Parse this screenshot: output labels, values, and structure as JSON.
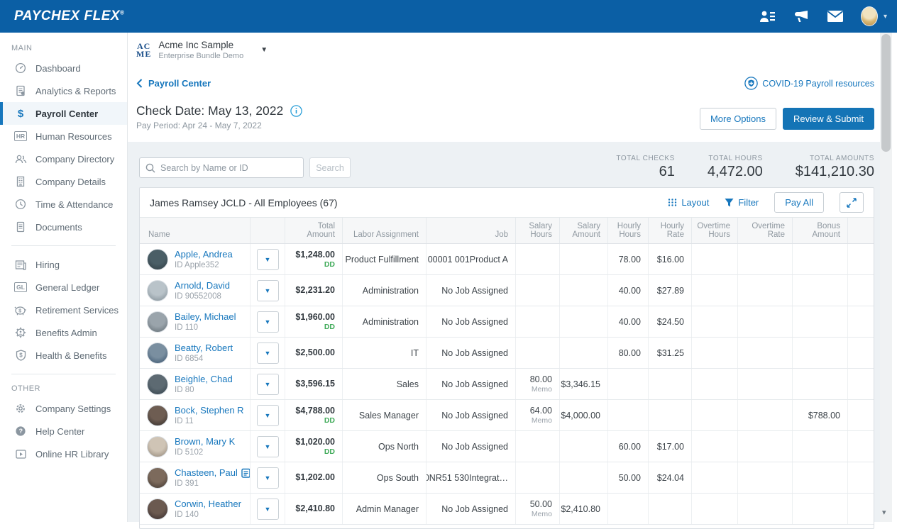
{
  "topbar": {
    "logo_paychex": "PAYCHEX",
    "logo_flex": "FLEX",
    "logo_reg": "®"
  },
  "sidebar": {
    "main_label": "MAIN",
    "other_label": "OTHER",
    "main_items": [
      {
        "label": "Dashboard",
        "icon": "gauge-icon",
        "active": false
      },
      {
        "label": "Analytics & Reports",
        "icon": "report-icon",
        "active": false
      },
      {
        "label": "Payroll Center",
        "icon": "dollar-icon",
        "active": true
      },
      {
        "label": "Human Resources",
        "icon": "hr-badge-icon",
        "active": false
      },
      {
        "label": "Company Directory",
        "icon": "people-icon",
        "active": false
      },
      {
        "label": "Company Details",
        "icon": "building-icon",
        "active": false
      },
      {
        "label": "Time & Attendance",
        "icon": "clock-icon",
        "active": false
      },
      {
        "label": "Documents",
        "icon": "document-icon",
        "active": false
      }
    ],
    "secondary_items": [
      {
        "label": "Hiring",
        "icon": "newspaper-icon"
      },
      {
        "label": "General Ledger",
        "icon": "gl-badge-icon"
      },
      {
        "label": "Retirement Services",
        "icon": "piggy-bank-icon"
      },
      {
        "label": "Benefits Admin",
        "icon": "benefits-gear-icon"
      },
      {
        "label": "Health & Benefits",
        "icon": "shield-icon"
      }
    ],
    "other_items": [
      {
        "label": "Company Settings",
        "icon": "gear-icon"
      },
      {
        "label": "Help Center",
        "icon": "help-icon"
      },
      {
        "label": "Online HR Library",
        "icon": "library-icon"
      }
    ]
  },
  "header": {
    "company_logo_line1": "AC",
    "company_logo_line2": "ME",
    "company_name": "Acme Inc Sample",
    "company_sub": "Enterprise Bundle Demo",
    "breadcrumb": "Payroll Center",
    "covid_link": "COVID-19 Payroll resources",
    "check_date": "Check Date: May 13, 2022",
    "pay_period": "Pay Period:  Apr 24 - May 7, 2022",
    "more_options_label": "More Options",
    "review_submit_label": "Review & Submit"
  },
  "toolbar": {
    "search_placeholder": "Search by Name or ID",
    "search_button_label": "Search",
    "totals": [
      {
        "label": "TOTAL CHECKS",
        "value": "61"
      },
      {
        "label": "TOTAL HOURS",
        "value": "4,472.00"
      },
      {
        "label": "TOTAL AMOUNTS",
        "value": "$141,210.30"
      }
    ]
  },
  "table": {
    "title": "James Ramsey JCLD - All Employees (67)",
    "layout_label": "Layout",
    "filter_label": "Filter",
    "pay_all_label": "Pay All",
    "columns": [
      "Name",
      "",
      "Total Amount",
      "Labor Assignment",
      "Job",
      "Salary Hours",
      "Salary Amount",
      "Hourly Hours",
      "Hourly Rate",
      "Overtime Hours",
      "Overtime Rate",
      "Bonus Amount",
      ""
    ],
    "rows": [
      {
        "name": "Apple, Andrea",
        "id": "ID Apple352",
        "total_amount": "$1,248.00",
        "dd": "DD",
        "labor": "Product Fulfillment",
        "job": "00001 001Product A",
        "salary_hours": "",
        "salary_memo": "",
        "salary_amount": "",
        "hourly_hours": "78.00",
        "hourly_rate": "$16.00",
        "overtime_hours": "",
        "overtime_rate": "",
        "bonus_amount": "",
        "has_note": false,
        "avatar_colors": [
          "#4a5e66",
          "#2e3b42"
        ]
      },
      {
        "name": "Arnold, David",
        "id": "ID 90552008",
        "total_amount": "$2,231.20",
        "dd": "",
        "labor": "Administration",
        "job": "No Job Assigned",
        "salary_hours": "",
        "salary_memo": "",
        "salary_amount": "",
        "hourly_hours": "40.00",
        "hourly_rate": "$27.89",
        "overtime_hours": "",
        "overtime_rate": "",
        "bonus_amount": "",
        "has_note": false,
        "avatar_colors": [
          "#b9c3c9",
          "#7d8a92"
        ]
      },
      {
        "name": "Bailey, Michael",
        "id": "ID 110",
        "total_amount": "$1,960.00",
        "dd": "DD",
        "labor": "Administration",
        "job": "No Job Assigned",
        "salary_hours": "",
        "salary_memo": "",
        "salary_amount": "",
        "hourly_hours": "40.00",
        "hourly_rate": "$24.50",
        "overtime_hours": "",
        "overtime_rate": "",
        "bonus_amount": "",
        "has_note": false,
        "avatar_colors": [
          "#9aa4ab",
          "#5f6a71"
        ]
      },
      {
        "name": "Beatty, Robert",
        "id": "ID 6854",
        "total_amount": "$2,500.00",
        "dd": "",
        "labor": "IT",
        "job": "No Job Assigned",
        "salary_hours": "",
        "salary_memo": "",
        "salary_amount": "",
        "hourly_hours": "80.00",
        "hourly_rate": "$31.25",
        "overtime_hours": "",
        "overtime_rate": "",
        "bonus_amount": "",
        "has_note": false,
        "avatar_colors": [
          "#7a8fa0",
          "#35506b"
        ]
      },
      {
        "name": "Beighle, Chad",
        "id": "ID 80",
        "total_amount": "$3,596.15",
        "dd": "",
        "labor": "Sales",
        "job": "No Job Assigned",
        "salary_hours": "80.00",
        "salary_memo": "Memo",
        "salary_amount": "$3,346.15",
        "hourly_hours": "",
        "hourly_rate": "",
        "overtime_hours": "",
        "overtime_rate": "",
        "bonus_amount": "",
        "has_note": false,
        "avatar_colors": [
          "#5d6a72",
          "#31404a"
        ]
      },
      {
        "name": "Bock, Stephen R",
        "id": "ID 11",
        "total_amount": "$4,788.00",
        "dd": "DD",
        "labor": "Sales Manager",
        "job": "No Job Assigned",
        "salary_hours": "64.00",
        "salary_memo": "Memo",
        "salary_amount": "$4,000.00",
        "hourly_hours": "",
        "hourly_rate": "",
        "overtime_hours": "",
        "overtime_rate": "",
        "bonus_amount": "$788.00",
        "has_note": false,
        "avatar_colors": [
          "#6e5d52",
          "#2f2a28"
        ]
      },
      {
        "name": "Brown, Mary K",
        "id": "ID 5102",
        "total_amount": "$1,020.00",
        "dd": "DD",
        "labor": "Ops North",
        "job": "No Job Assigned",
        "salary_hours": "",
        "salary_memo": "",
        "salary_amount": "",
        "hourly_hours": "60.00",
        "hourly_rate": "$17.00",
        "overtime_hours": "",
        "overtime_rate": "",
        "bonus_amount": "",
        "has_note": false,
        "avatar_colors": [
          "#cfc4b5",
          "#8e8274"
        ]
      },
      {
        "name": "Chasteen, Paul",
        "id": "ID 391",
        "total_amount": "$1,202.00",
        "dd": "",
        "labor": "Ops South",
        "job": "0NR51 530Integrat…",
        "salary_hours": "",
        "salary_memo": "",
        "salary_amount": "",
        "hourly_hours": "50.00",
        "hourly_rate": "$24.04",
        "overtime_hours": "",
        "overtime_rate": "",
        "bonus_amount": "",
        "has_note": true,
        "avatar_colors": [
          "#7c6a5c",
          "#3d332c"
        ]
      },
      {
        "name": "Corwin, Heather",
        "id": "ID 140",
        "total_amount": "$2,410.80",
        "dd": "",
        "labor": "Admin Manager",
        "job": "No Job Assigned",
        "salary_hours": "50.00",
        "salary_memo": "Memo",
        "salary_amount": "$2,410.80",
        "hourly_hours": "",
        "hourly_rate": "",
        "overtime_hours": "",
        "overtime_rate": "",
        "bonus_amount": "",
        "has_note": false,
        "avatar_colors": [
          "#6b5a50",
          "#33282a"
        ]
      }
    ]
  }
}
